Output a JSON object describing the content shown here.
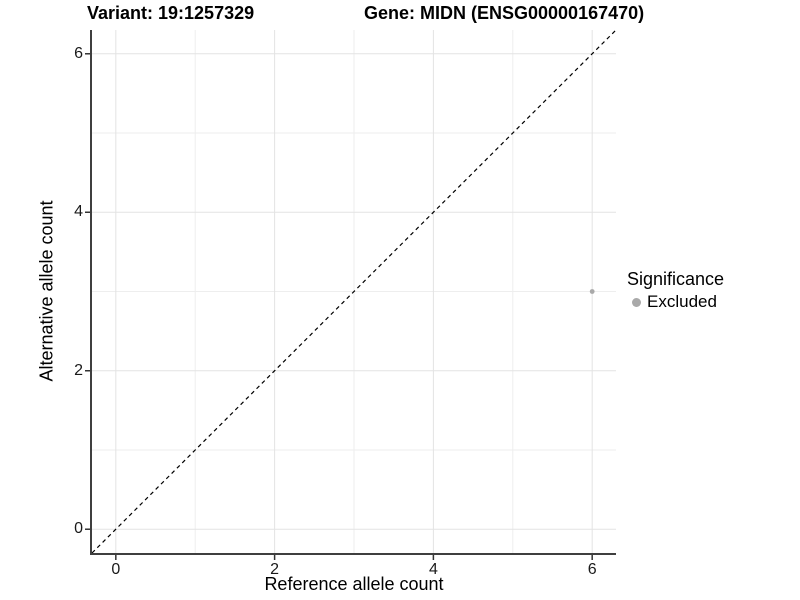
{
  "chart_data": {
    "type": "scatter",
    "title_left": "Variant: 19:1257329",
    "title_right": "Gene: MIDN (ENSG00000167470)",
    "xlabel": "Reference allele count",
    "ylabel": "Alternative allele count",
    "xlim": [
      -0.3,
      6.3
    ],
    "ylim": [
      -0.3,
      6.3
    ],
    "x_ticks": [
      0,
      2,
      4,
      6
    ],
    "y_ticks": [
      0,
      2,
      4,
      6
    ],
    "minor_grid": [
      1,
      3,
      5
    ],
    "grid": true,
    "reference_line": {
      "type": "identity",
      "style": "dashed",
      "color": "#000000"
    },
    "points": [
      {
        "x": 6,
        "y": 3,
        "series": "Excluded"
      }
    ],
    "legend": {
      "title": "Significance",
      "position": "right",
      "items": [
        {
          "label": "Excluded",
          "color": "#a9a9a9"
        }
      ]
    }
  },
  "colors": {
    "point": "#a9a9a9",
    "grid_major": "#e3e3e3",
    "grid_minor": "#eeeeee",
    "axis_line": "#3f3f3f",
    "tick_mark": "#333333",
    "tick_text": "#1a1a1a",
    "text": "#000000",
    "background": "#ffffff"
  }
}
